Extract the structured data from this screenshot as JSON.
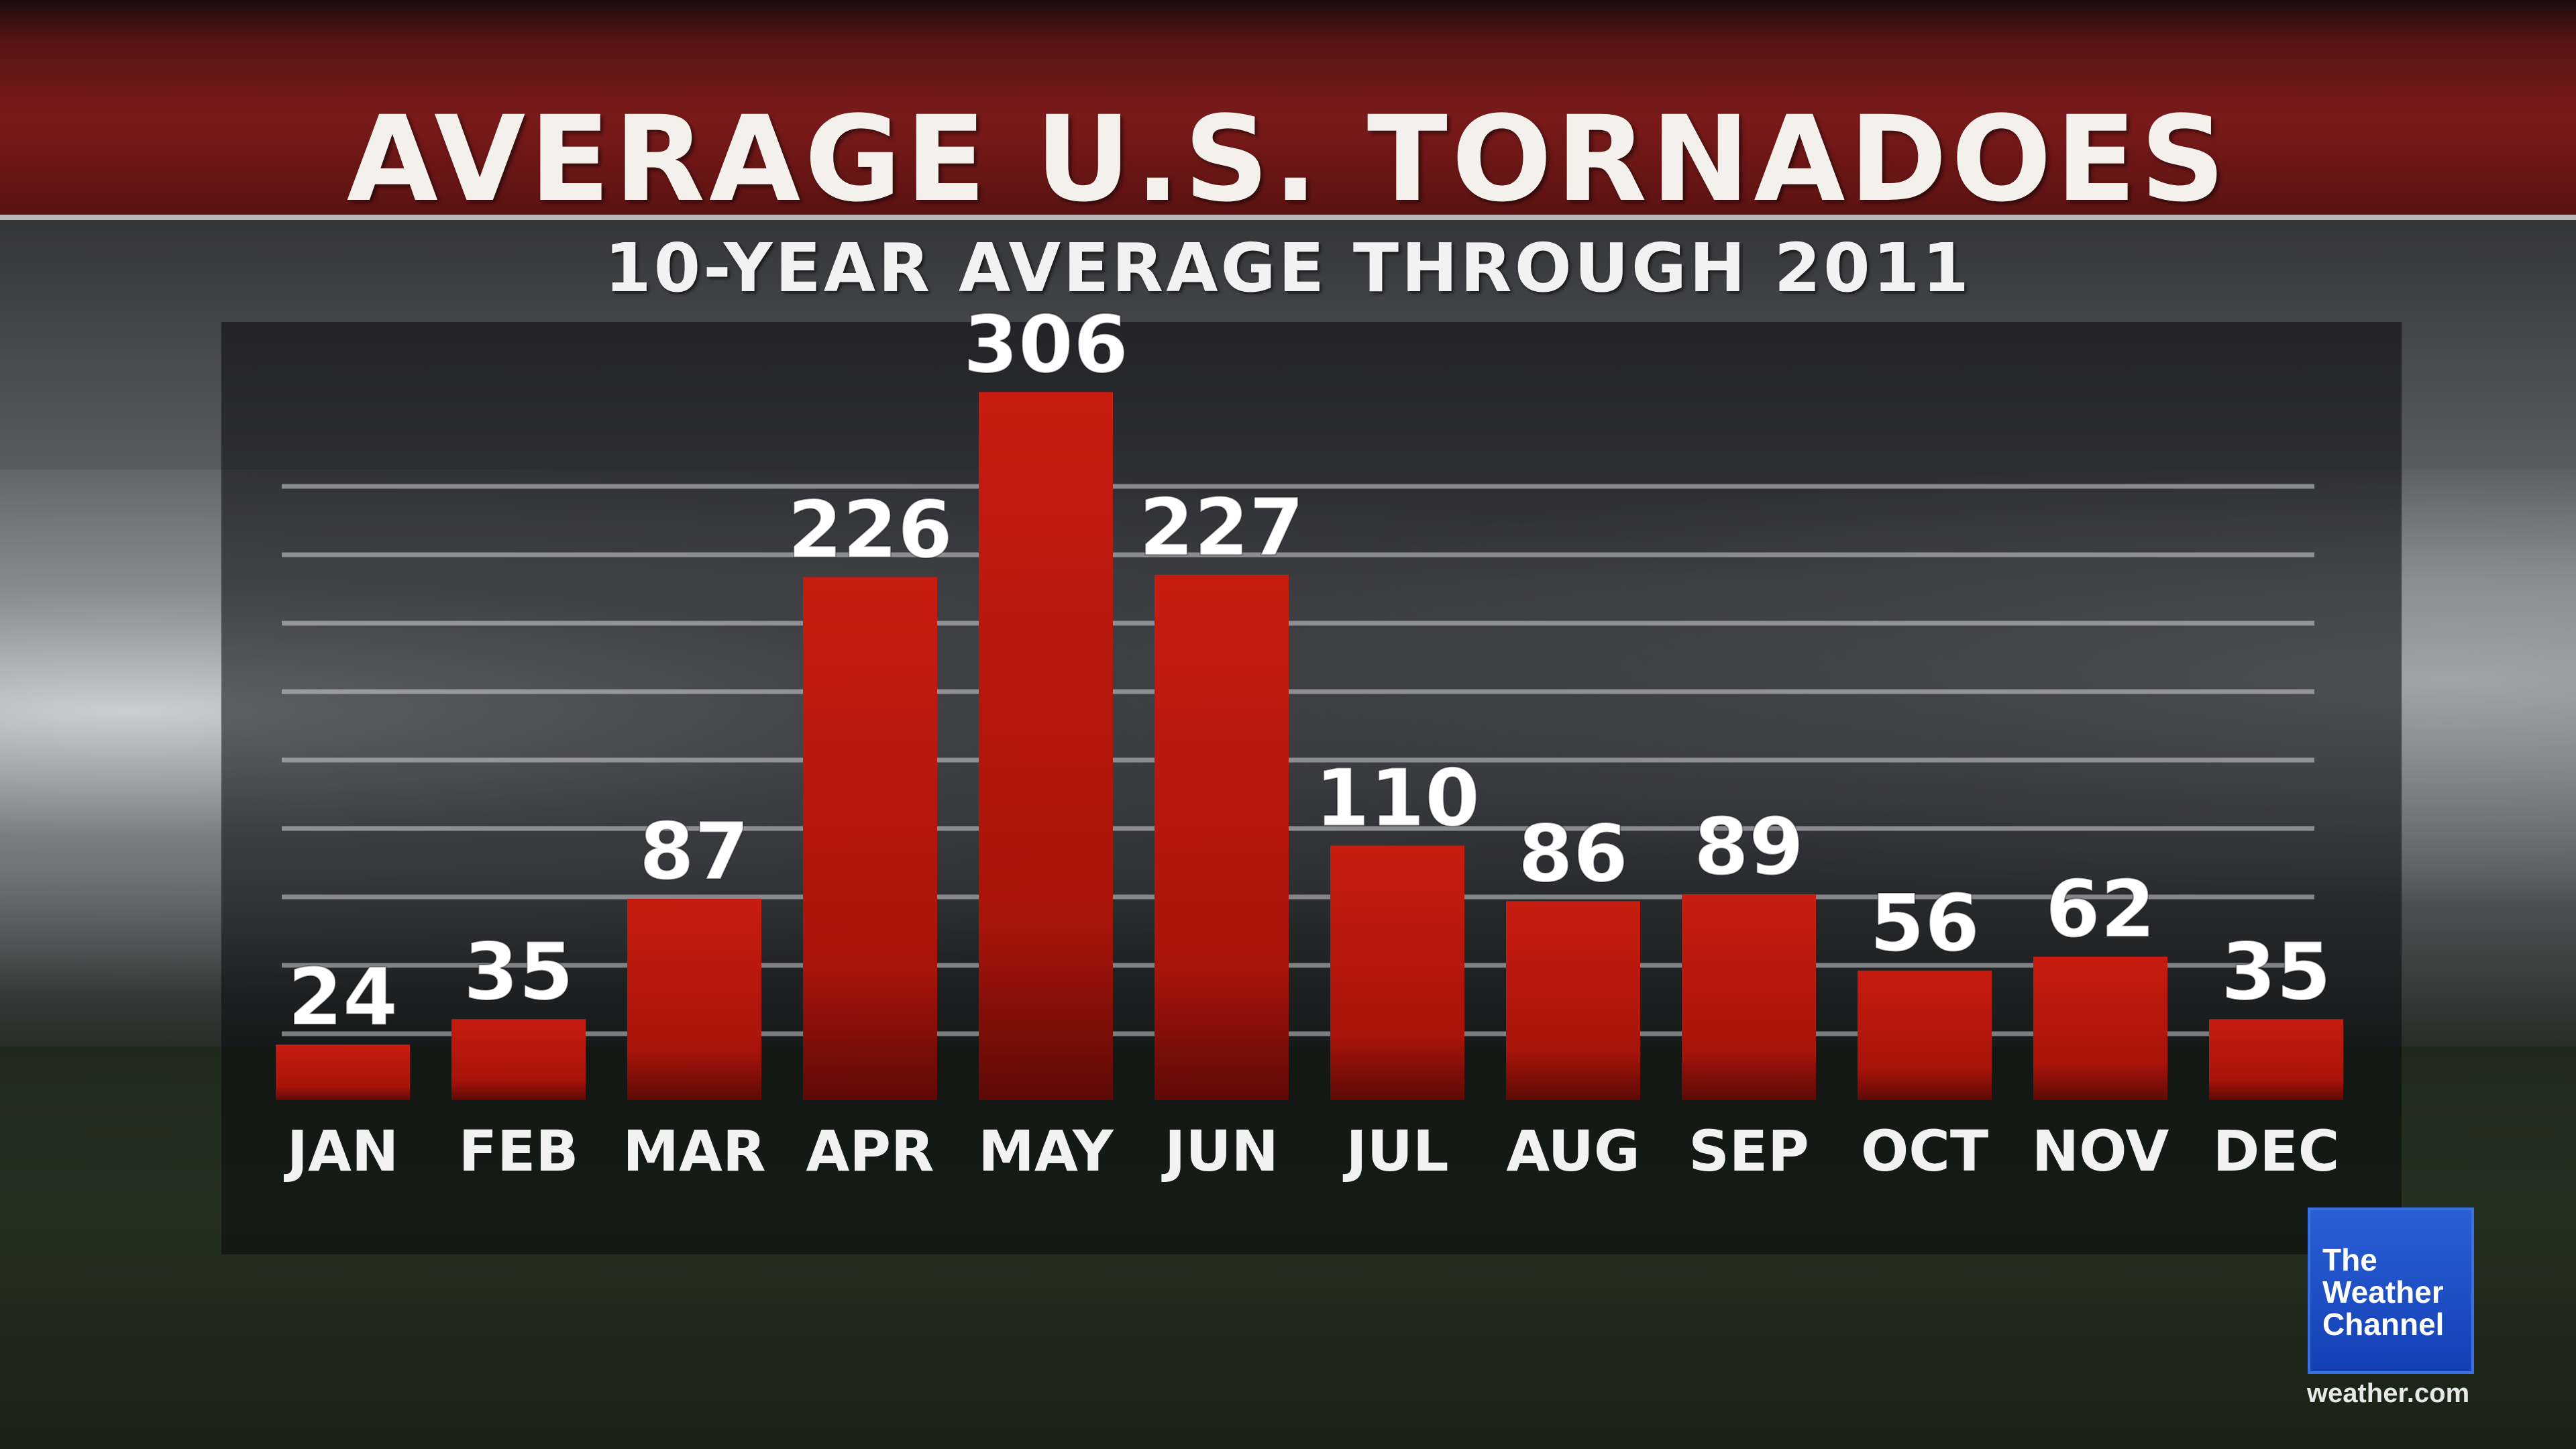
{
  "chart_data": {
    "type": "bar",
    "title": "AVERAGE U.S. TORNADOES",
    "subtitle": "10-YEAR AVERAGE THROUGH 2011",
    "categories": [
      "JAN",
      "FEB",
      "MAR",
      "APR",
      "MAY",
      "JUN",
      "JUL",
      "AUG",
      "SEP",
      "OCT",
      "NOV",
      "DEC"
    ],
    "values": [
      24,
      35,
      87,
      226,
      306,
      227,
      110,
      86,
      89,
      56,
      62,
      35
    ],
    "ylim": [
      0,
      340
    ],
    "grid": true,
    "data_labels": true,
    "bar_color": "#c81c10",
    "bar_color_dark": "#5e0a06"
  },
  "branding": {
    "logo_text": "The Weather Channel",
    "site": "weather.com",
    "logo_color": "#1e4fc8"
  }
}
